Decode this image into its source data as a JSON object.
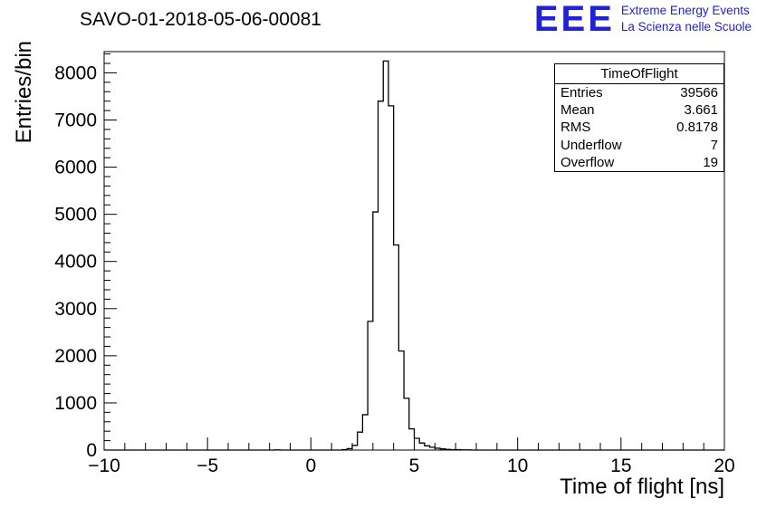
{
  "title": "SAVO-01-2018-05-06-00081",
  "logo": {
    "eee": "EEE",
    "line1": "Extreme Energy Events",
    "line2": "La Scienza nelle Scuole",
    "color": "#2121d6"
  },
  "stats": {
    "title": "TimeOfFlight",
    "rows": [
      {
        "label": "Entries",
        "value": "39566"
      },
      {
        "label": "Mean",
        "value": "3.661"
      },
      {
        "label": "RMS",
        "value": "0.8178"
      },
      {
        "label": "Underflow",
        "value": "7"
      },
      {
        "label": "Overflow",
        "value": "19"
      }
    ]
  },
  "chart_data": {
    "type": "bar",
    "subtype": "step-histogram",
    "title": "SAVO-01-2018-05-06-00081",
    "xlabel": "Time of flight [ns]",
    "ylabel": "Entries/bin",
    "xlim": [
      -10,
      20
    ],
    "ylim": [
      0,
      8450
    ],
    "xticks": [
      -10,
      -5,
      0,
      5,
      10,
      15,
      20
    ],
    "yticks": [
      0,
      1000,
      2000,
      3000,
      4000,
      5000,
      6000,
      7000,
      8000
    ],
    "x_minor_step": 1,
    "y_minor_step": 200,
    "bin_width": 0.25,
    "line_color": "#000000",
    "grid": false,
    "legend": "none",
    "bins": [
      [
        -1.75,
        5
      ],
      [
        1.5,
        10
      ],
      [
        1.75,
        30
      ],
      [
        2.0,
        100
      ],
      [
        2.25,
        380
      ],
      [
        2.5,
        750
      ],
      [
        2.75,
        2730
      ],
      [
        3.0,
        5050
      ],
      [
        3.25,
        7400
      ],
      [
        3.5,
        8250
      ],
      [
        3.75,
        7300
      ],
      [
        4.0,
        4350
      ],
      [
        4.25,
        2100
      ],
      [
        4.5,
        1100
      ],
      [
        4.75,
        450
      ],
      [
        5.0,
        250
      ],
      [
        5.25,
        150
      ],
      [
        5.5,
        90
      ],
      [
        5.75,
        60
      ],
      [
        6.0,
        40
      ],
      [
        6.25,
        25
      ],
      [
        6.5,
        15
      ],
      [
        6.75,
        10
      ],
      [
        7.0,
        8
      ],
      [
        7.25,
        5
      ],
      [
        7.5,
        4
      ]
    ]
  }
}
